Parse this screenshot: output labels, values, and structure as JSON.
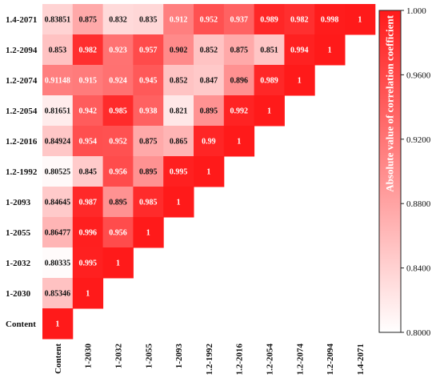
{
  "chart_data": {
    "type": "heatmap",
    "layout": "lower-triangular correlation matrix",
    "row_labels": [
      "1.4-2071",
      "1.2-2094",
      "1.2-2074",
      "1.2-2054",
      "1.2-2016",
      "1.2-1992",
      "1-2093",
      "1-2055",
      "1-2032",
      "1-2030",
      "Content"
    ],
    "col_labels": [
      "Content",
      "1-2030",
      "1-2032",
      "1-2055",
      "1-2093",
      "1.2-1992",
      "1.2-2016",
      "1.2-2054",
      "1.2-2074",
      "1.2-2094",
      "1.4-2071"
    ],
    "values": [
      [
        "0.83851",
        "0.875",
        "0.832",
        "0.835",
        "0.912",
        "0.952",
        "0.937",
        "0.989",
        "0.982",
        "0.998",
        "1"
      ],
      [
        "0.853",
        "0.982",
        "0.923",
        "0.957",
        "0.902",
        "0.852",
        "0.875",
        "0.851",
        "0.994",
        "1"
      ],
      [
        "0.91148",
        "0.915",
        "0.924",
        "0.945",
        "0.852",
        "0.847",
        "0.896",
        "0.989",
        "1"
      ],
      [
        "0.81651",
        "0.942",
        "0.985",
        "0.938",
        "0.821",
        "0.895",
        "0.992",
        "1"
      ],
      [
        "0.84924",
        "0.954",
        "0.952",
        "0.875",
        "0.865",
        "0.99",
        "1"
      ],
      [
        "0.80525",
        "0.845",
        "0.956",
        "0.895",
        "0.995",
        "1"
      ],
      [
        "0.84645",
        "0.987",
        "0.895",
        "0.985",
        "1"
      ],
      [
        "0.86477",
        "0.996",
        "0.956",
        "1"
      ],
      [
        "0.80335",
        "0.995",
        "1"
      ],
      [
        "0.85346",
        "1"
      ],
      [
        "1"
      ]
    ],
    "colorbar": {
      "label": "Absolute value of correlation coefficient",
      "min": 0.8,
      "max": 1.0,
      "ticks": [
        "1.000",
        "0.9600",
        "0.9200",
        "0.8800",
        "0.8400",
        "0.8000"
      ],
      "color_low": "#ffffff",
      "color_high": "#ff1a1a"
    }
  }
}
